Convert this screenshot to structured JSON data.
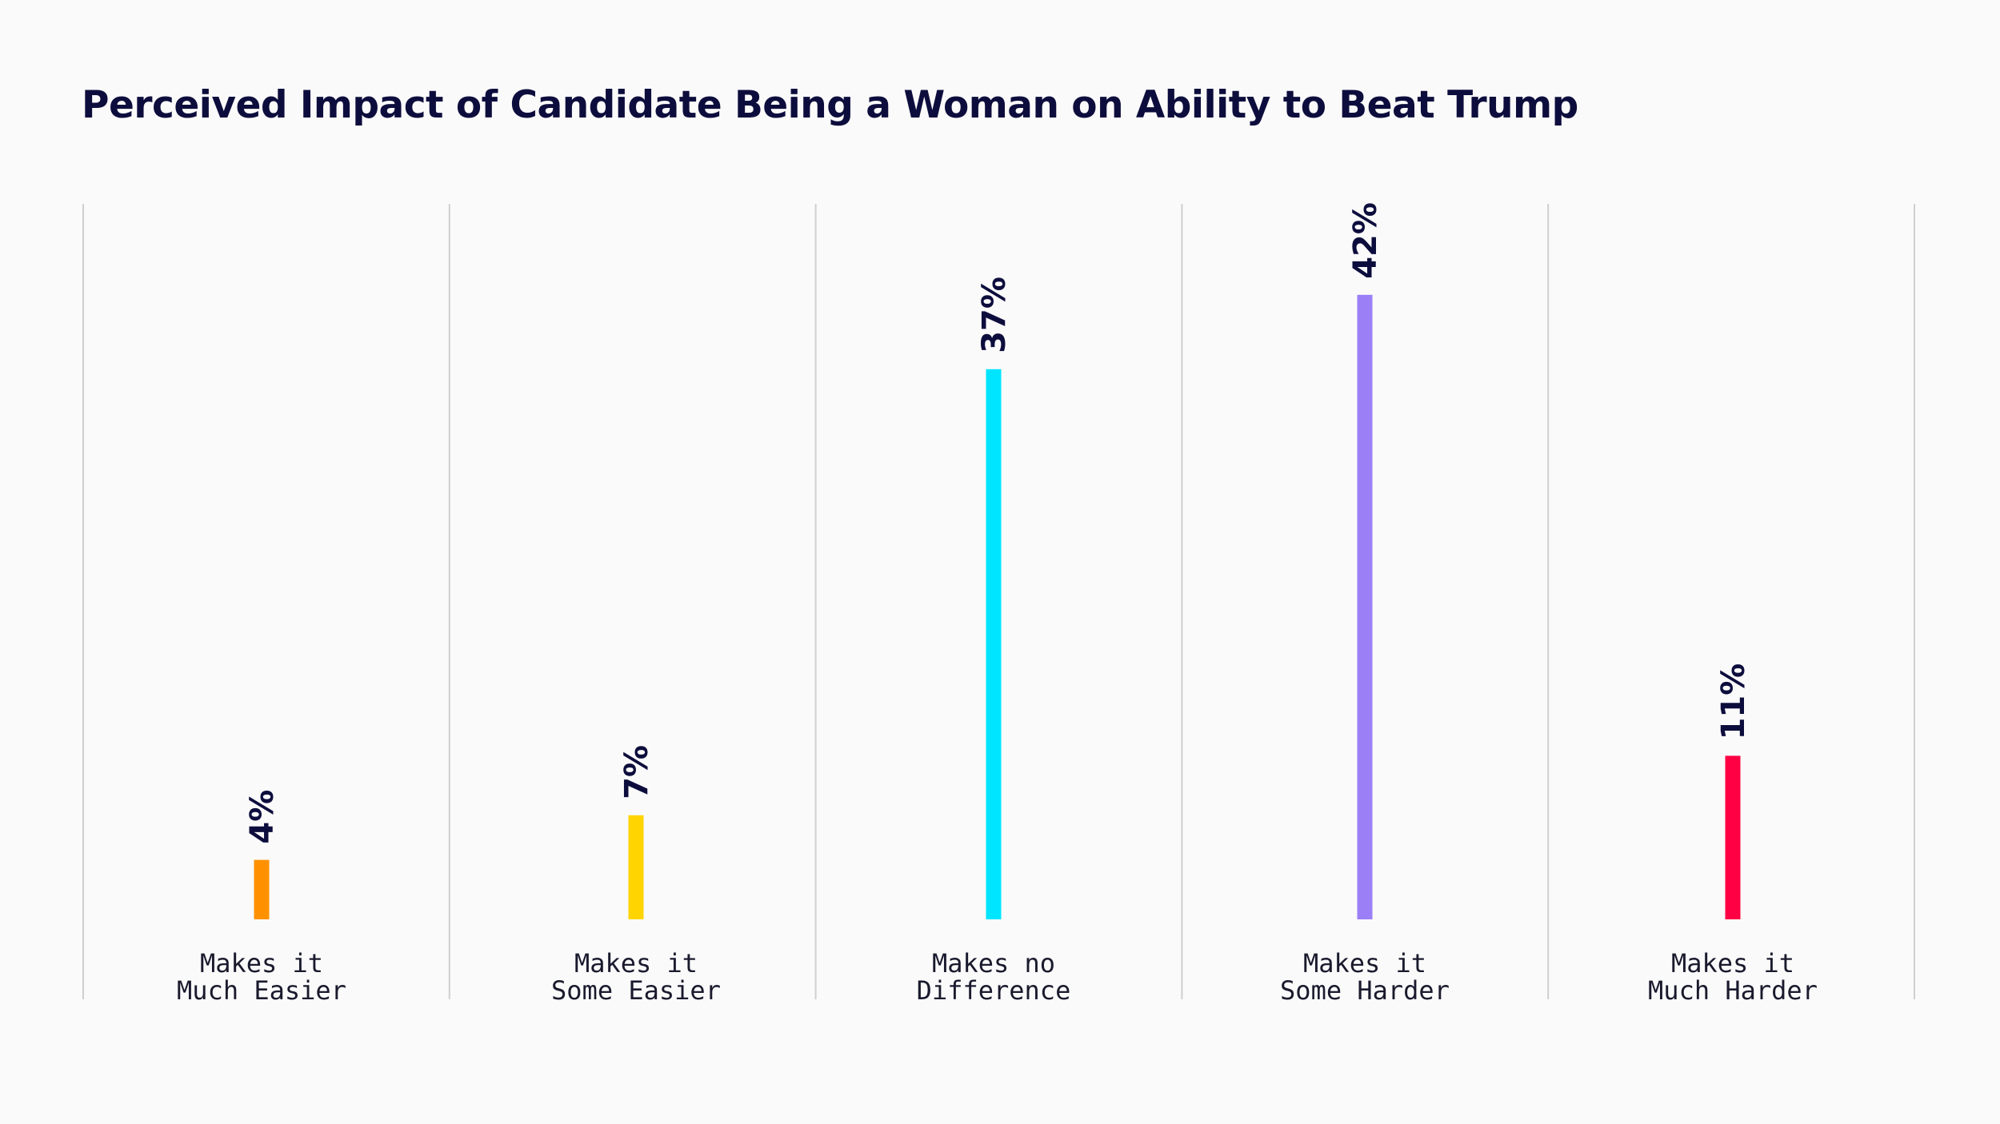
{
  "chart_data": {
    "type": "bar",
    "title": "Perceived Impact of Candidate Being a Woman on Ability to Beat Trump",
    "categories": [
      [
        "Makes it",
        "Much Easier"
      ],
      [
        "Makes it",
        "Some Easier"
      ],
      [
        "Makes no",
        "Difference"
      ],
      [
        "Makes it",
        "Some Harder"
      ],
      [
        "Makes it",
        "Much Harder"
      ]
    ],
    "values": [
      4,
      7,
      37,
      42,
      11
    ],
    "value_labels": [
      "4%",
      "7%",
      "37%",
      "42%",
      "11%"
    ],
    "colors": [
      "#ff9100",
      "#ffd400",
      "#00e5ff",
      "#9a7ff7",
      "#ff0044"
    ],
    "xlabel": "",
    "ylabel": "",
    "ylim": [
      0,
      50
    ],
    "grid": false,
    "legend": "none"
  }
}
